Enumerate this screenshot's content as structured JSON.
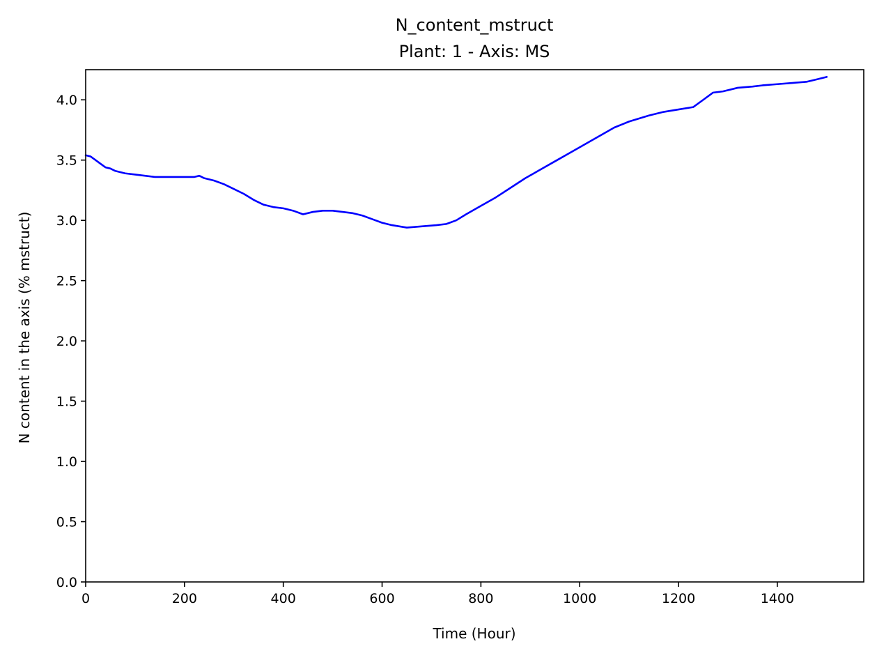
{
  "chart_data": {
    "type": "line",
    "title": "N_content_mstruct",
    "subtitle": "Plant: 1 - Axis: MS",
    "xlabel": "Time (Hour)",
    "ylabel": "N content in the axis (% mstruct)",
    "xlim": [
      0,
      1575
    ],
    "ylim": [
      0,
      4.25
    ],
    "x_ticks": [
      "0",
      "200",
      "400",
      "600",
      "800",
      "1000",
      "1200",
      "1400"
    ],
    "y_ticks": [
      "0.0",
      "0.5",
      "1.0",
      "1.5",
      "2.0",
      "2.5",
      "3.0",
      "3.5",
      "4.0"
    ],
    "grid": false,
    "legend": "none",
    "series": [
      {
        "color": "#0000ff",
        "x": [
          0,
          10,
          20,
          30,
          40,
          50,
          60,
          70,
          80,
          100,
          120,
          140,
          160,
          180,
          200,
          220,
          230,
          240,
          260,
          280,
          300,
          320,
          340,
          360,
          380,
          400,
          420,
          440,
          460,
          480,
          500,
          520,
          540,
          560,
          580,
          600,
          620,
          650,
          680,
          710,
          730,
          750,
          770,
          800,
          830,
          860,
          890,
          920,
          950,
          980,
          1010,
          1040,
          1070,
          1100,
          1140,
          1170,
          1200,
          1230,
          1250,
          1270,
          1290,
          1320,
          1350,
          1370,
          1400,
          1430,
          1460,
          1480,
          1500
        ],
        "y": [
          3.54,
          3.53,
          3.5,
          3.47,
          3.44,
          3.43,
          3.41,
          3.4,
          3.39,
          3.38,
          3.37,
          3.36,
          3.36,
          3.36,
          3.36,
          3.36,
          3.37,
          3.35,
          3.33,
          3.3,
          3.26,
          3.22,
          3.17,
          3.13,
          3.11,
          3.1,
          3.08,
          3.05,
          3.07,
          3.08,
          3.08,
          3.07,
          3.06,
          3.04,
          3.01,
          2.98,
          2.96,
          2.94,
          2.95,
          2.96,
          2.97,
          3.0,
          3.05,
          3.12,
          3.19,
          3.27,
          3.35,
          3.42,
          3.49,
          3.56,
          3.63,
          3.7,
          3.77,
          3.82,
          3.87,
          3.9,
          3.92,
          3.94,
          4.0,
          4.06,
          4.07,
          4.1,
          4.11,
          4.12,
          4.13,
          4.14,
          4.15,
          4.17,
          4.19
        ]
      }
    ]
  }
}
